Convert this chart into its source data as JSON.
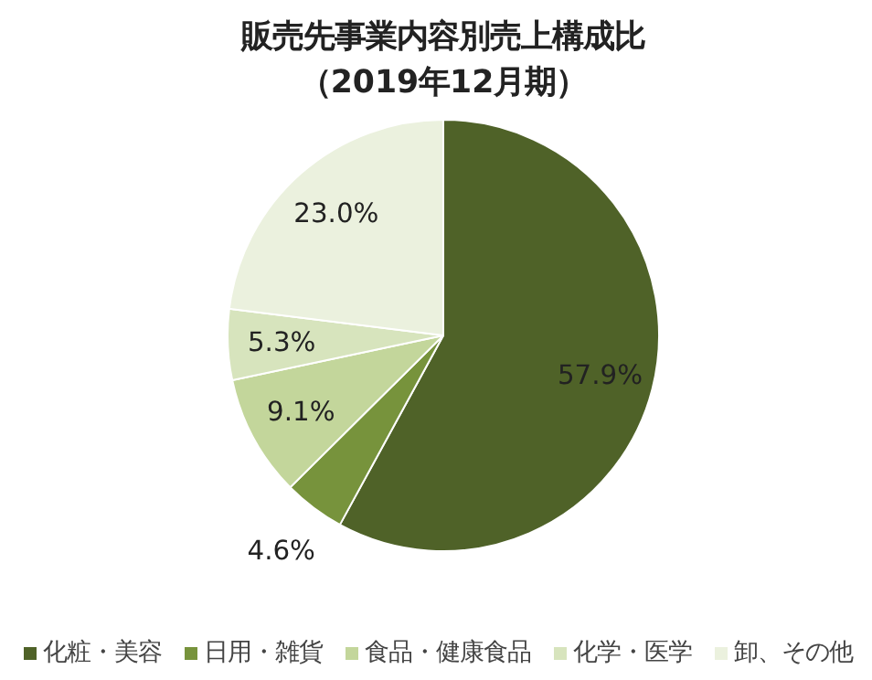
{
  "chart_data": {
    "type": "pie",
    "title": "販売先事業内容別売上構成比",
    "subtitle": "（2019年12月期）",
    "categories": [
      "化粧・美容",
      "日用・雑貨",
      "食品・健康食品",
      "化学・医学",
      "卸、その他"
    ],
    "values": [
      57.9,
      4.6,
      9.1,
      5.3,
      23.0
    ],
    "value_labels": [
      "57.9%",
      "4.6%",
      "9.1%",
      "5.3%",
      "23.0%"
    ],
    "colors": [
      "#4f6228",
      "#77933c",
      "#c3d69b",
      "#d7e4bd",
      "#ebf1de"
    ],
    "legend": "bottom"
  }
}
